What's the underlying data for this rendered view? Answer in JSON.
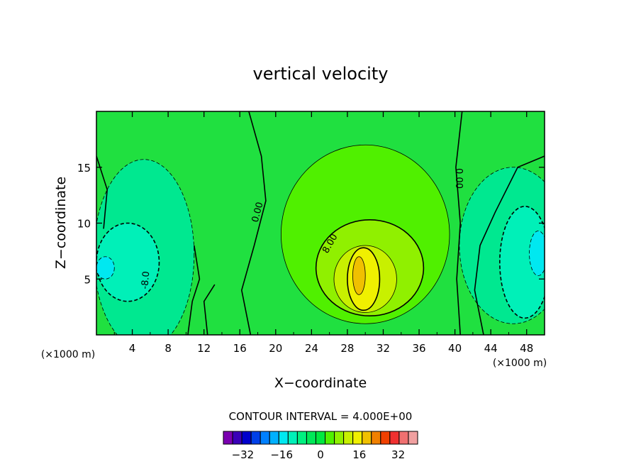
{
  "chart_data": {
    "type": "heatmap",
    "title": "vertical velocity",
    "xlabel": "X−coordinate",
    "ylabel": "Z−coordinate",
    "x_unit_left": "(×1000 m)",
    "x_unit_right": "(×1000 m)",
    "xlim": [
      0,
      50
    ],
    "ylim": [
      0,
      20
    ],
    "xticks": [
      4,
      8,
      12,
      16,
      20,
      24,
      28,
      32,
      36,
      40,
      44,
      48
    ],
    "yticks": [
      5,
      10,
      15
    ],
    "contour_interval_text": "CONTOUR INTERVAL = 4.000E+00",
    "contour_labels": [
      {
        "text": "0.00",
        "x": 17.9,
        "y": 11.0,
        "rotate": -75
      },
      {
        "text": "0.00",
        "x": 40.5,
        "y": 14.0,
        "rotate": 90
      },
      {
        "text": "8.00",
        "x": 26.0,
        "y": 8.2,
        "rotate": -60
      },
      {
        "text": "-8.0",
        "x": 5.4,
        "y": 4.9,
        "rotate": -85
      }
    ],
    "colorbar": {
      "levels": [
        -40,
        -36,
        -32,
        -28,
        -24,
        -20,
        -16,
        -12,
        -8,
        -4,
        0,
        4,
        8,
        12,
        16,
        20,
        24,
        28,
        32,
        36,
        40
      ],
      "tick_labels": [
        "−32",
        "−16",
        "0",
        "16",
        "32"
      ],
      "tick_values": [
        -32,
        -16,
        0,
        16,
        32
      ],
      "colors": [
        "#7a00b0",
        "#3a00b8",
        "#0000cc",
        "#0040e8",
        "#0080ff",
        "#00b0ff",
        "#00e8f0",
        "#00f0b8",
        "#00f080",
        "#00e858",
        "#00e840",
        "#50f000",
        "#90f000",
        "#c8f000",
        "#f0f000",
        "#f0c000",
        "#f08000",
        "#f04000",
        "#f03030",
        "#f07070",
        "#f0a0a0"
      ]
    },
    "background_color": "#20e040",
    "regions": [
      {
        "name": "left-negative",
        "level": -4,
        "color": "#00e890",
        "x": 5.3,
        "y": 7.2,
        "rx": 5.6,
        "ry": 8.5
      },
      {
        "name": "left-negative-core",
        "level": -8,
        "color": "#00f0b8",
        "x": 3.5,
        "y": 6.5,
        "rx": 3.5,
        "ry": 3.5
      },
      {
        "name": "left-negative-peak",
        "level": -12,
        "color": "#00e8f0",
        "x": 1.0,
        "y": 6.0,
        "rx": 1.0,
        "ry": 1.0
      },
      {
        "name": "right-negative",
        "level": -4,
        "color": "#00e890",
        "x": 46.5,
        "y": 8.0,
        "rx": 6.0,
        "ry": 7.0
      },
      {
        "name": "right-negative-core",
        "level": -8,
        "color": "#00f0b8",
        "x": 47.8,
        "y": 6.5,
        "rx": 2.8,
        "ry": 5.0
      },
      {
        "name": "right-negative-peak",
        "level": -12,
        "color": "#00e8f0",
        "x": 49.3,
        "y": 7.3,
        "rx": 1.0,
        "ry": 2.0
      },
      {
        "name": "central-positive-4",
        "level": 4,
        "color": "#50f000",
        "x": 30.0,
        "y": 9.0,
        "rx": 9.4,
        "ry": 8.0
      },
      {
        "name": "central-positive-8",
        "level": 8,
        "color": "#90f000",
        "x": 30.5,
        "y": 6.0,
        "rx": 6.0,
        "ry": 4.3
      },
      {
        "name": "central-positive-12",
        "level": 12,
        "color": "#c8f000",
        "x": 30.0,
        "y": 5.0,
        "rx": 3.5,
        "ry": 3.0
      },
      {
        "name": "central-positive-16",
        "level": 16,
        "color": "#f0f000",
        "x": 29.8,
        "y": 5.0,
        "rx": 1.8,
        "ry": 2.8
      },
      {
        "name": "central-positive-20",
        "level": 20,
        "color": "#f0c000",
        "x": 29.3,
        "y": 5.3,
        "rx": 0.7,
        "ry": 1.7
      }
    ]
  }
}
